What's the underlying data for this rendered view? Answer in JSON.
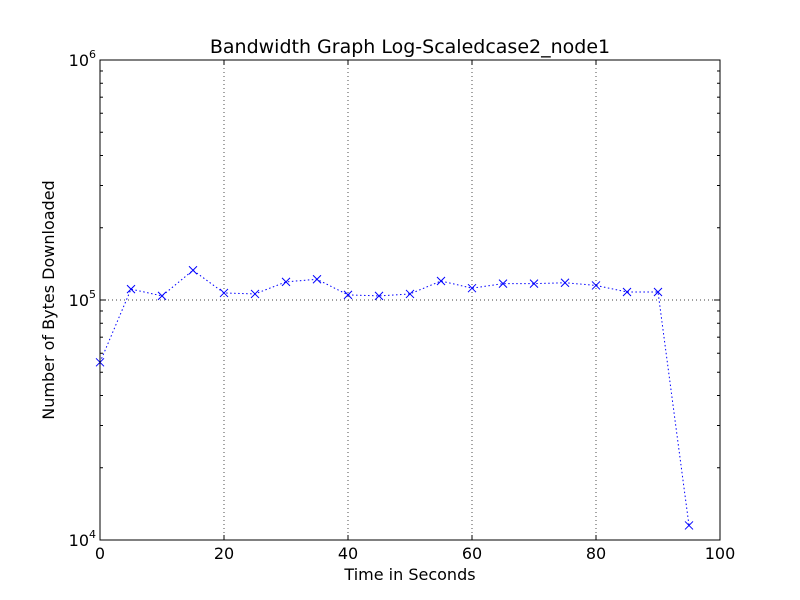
{
  "chart_data": {
    "type": "line",
    "title": "Bandwidth Graph Log-Scaledcase2_node1",
    "xlabel": "Time in Seconds",
    "ylabel": "Number of Bytes Downloaded",
    "xlim": [
      0,
      100
    ],
    "ylim": [
      10000,
      1000000
    ],
    "yscale": "log",
    "grid": true,
    "x_ticks": [
      "0",
      "20",
      "40",
      "60",
      "80",
      "100"
    ],
    "y_ticks": [
      {
        "base": "10",
        "exp": "4",
        "value": 10000
      },
      {
        "base": "10",
        "exp": "5",
        "value": 100000
      },
      {
        "base": "10",
        "exp": "6",
        "value": 1000000
      }
    ],
    "series": [
      {
        "color": "#0000ff",
        "linestyle": "dotted",
        "marker": "x",
        "x": [
          0,
          5,
          10,
          15,
          20,
          25,
          30,
          35,
          40,
          45,
          50,
          55,
          60,
          65,
          70,
          75,
          80,
          85,
          90,
          95
        ],
        "y": [
          55000,
          111000,
          104000,
          133000,
          107000,
          106000,
          119000,
          122000,
          105000,
          104000,
          106000,
          120000,
          112000,
          117000,
          117000,
          118000,
          115000,
          108000,
          108000,
          11500
        ]
      }
    ]
  }
}
